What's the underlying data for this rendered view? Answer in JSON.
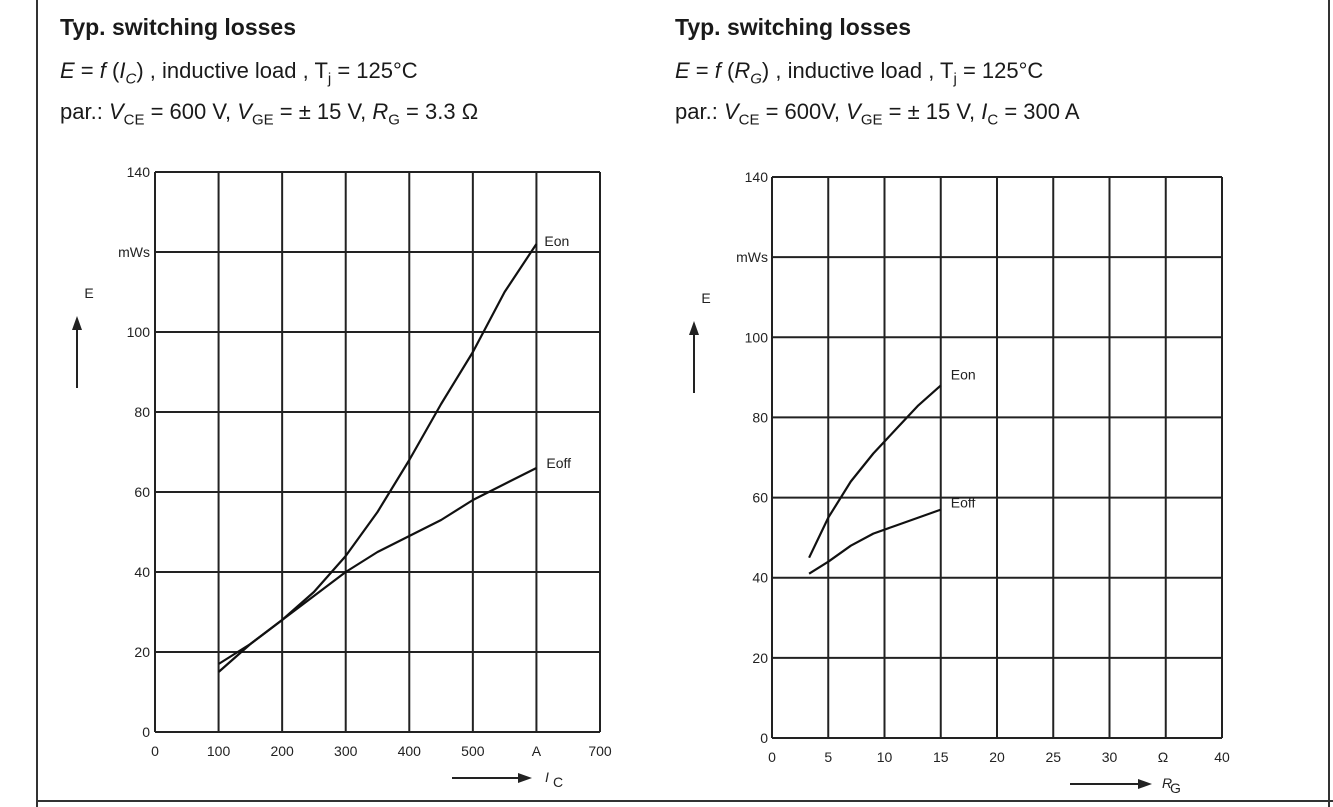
{
  "panels": [
    {
      "title": "Typ. switching losses",
      "line2": {
        "e": "E",
        "eq": " = ",
        "f": "f",
        "arg": "I",
        "arg_sub": "C",
        "rest": " , inductive load , T",
        "tj_sub": "j",
        "tail": " = 125°C"
      },
      "line3": {
        "par": "par.:",
        "v1": "V",
        "v1_sub": "CE",
        "v1_val": " = 600 V,",
        "v2": "V",
        "v2_sub": "GE",
        "v2_val": " = ± 15 V,",
        "v3": "R",
        "v3_sub": "G",
        "v3_val": " = 3.3 Ω"
      }
    },
    {
      "title": "Typ. switching losses",
      "line2": {
        "e": "E",
        "eq": " = ",
        "f": "f",
        "arg": "R",
        "arg_sub": "G",
        "rest": " , inductive load , T",
        "tj_sub": "j",
        "tail": " = 125°C"
      },
      "line3": {
        "par": "par.:",
        "v1": "V",
        "v1_sub": "CE",
        "v1_val": " = 600V,",
        "v2": "V",
        "v2_sub": "GE",
        "v2_val": " = ± 15 V,",
        "v3": "I",
        "v3_sub": "C",
        "v3_val": " = 300 A"
      }
    }
  ],
  "chart_data": [
    {
      "type": "line",
      "ylabel": "E",
      "yunit": "mWs",
      "xlabel": "I",
      "xlabel_sub": "C",
      "xlim": [
        0,
        700
      ],
      "ylim": [
        0,
        140
      ],
      "x_ticks": [
        "0",
        "100",
        "200",
        "300",
        "400",
        "500",
        "A",
        "700"
      ],
      "y_ticks": [
        "0",
        "20",
        "40",
        "60",
        "80",
        "100",
        "mWs",
        "140"
      ],
      "grid": true,
      "series": [
        {
          "name": "Eon",
          "x": [
            100,
            150,
            200,
            250,
            300,
            350,
            400,
            450,
            500,
            550,
            600
          ],
          "y": [
            15,
            22,
            28,
            35,
            44,
            55,
            68,
            82,
            95,
            110,
            122
          ]
        },
        {
          "name": "Eoff",
          "x": [
            100,
            150,
            200,
            250,
            300,
            350,
            400,
            450,
            500,
            550,
            600
          ],
          "y": [
            17,
            22,
            28,
            34,
            40,
            45,
            49,
            53,
            58,
            62,
            66
          ]
        }
      ]
    },
    {
      "type": "line",
      "ylabel": "E",
      "yunit": "mWs",
      "xlabel": "R",
      "xlabel_sub": "G",
      "xunit": "Ω",
      "xlim": [
        0,
        40
      ],
      "ylim": [
        0,
        140
      ],
      "x_ticks": [
        "0",
        "5",
        "10",
        "15",
        "20",
        "25",
        "30",
        "Ω",
        "40"
      ],
      "y_ticks": [
        "0",
        "20",
        "40",
        "60",
        "80",
        "mWs",
        "100",
        "140"
      ],
      "grid": true,
      "series": [
        {
          "name": "Eon",
          "x": [
            3.3,
            5,
            7,
            9,
            11,
            13,
            15
          ],
          "y": [
            45,
            55,
            64,
            71,
            77,
            83,
            88
          ]
        },
        {
          "name": "Eoff",
          "x": [
            3.3,
            5,
            7,
            9,
            11,
            13,
            15
          ],
          "y": [
            41,
            44,
            48,
            51,
            53,
            55,
            57
          ]
        }
      ]
    }
  ]
}
